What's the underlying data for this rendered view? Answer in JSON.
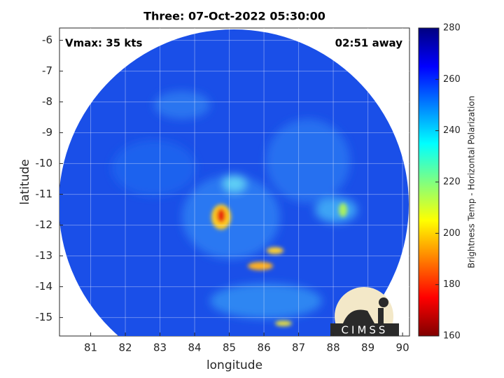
{
  "chart_data": {
    "type": "map",
    "title": "Three: 07-Oct-2022 05:30:00",
    "annotations": [
      "Vmax: 35 kts",
      "02:51 away"
    ],
    "x_label": "longitude",
    "y_label": "latitude",
    "xlim": [
      80.1,
      90.2
    ],
    "xticks": [
      81,
      82,
      83,
      84,
      85,
      86,
      87,
      88,
      89,
      90
    ],
    "ylim": [
      -15.6,
      -5.6
    ],
    "yticks": [
      -15,
      -14,
      -13,
      -12,
      -11,
      -10,
      -9,
      -8,
      -7,
      -6
    ],
    "grid": true,
    "colorbar": {
      "label": "Brightness Temp - Horizontal Polarization",
      "lim": [
        160,
        280
      ],
      "ticks": [
        160,
        180,
        200,
        220,
        240,
        260,
        280
      ]
    },
    "logo": "CIMSS"
  }
}
